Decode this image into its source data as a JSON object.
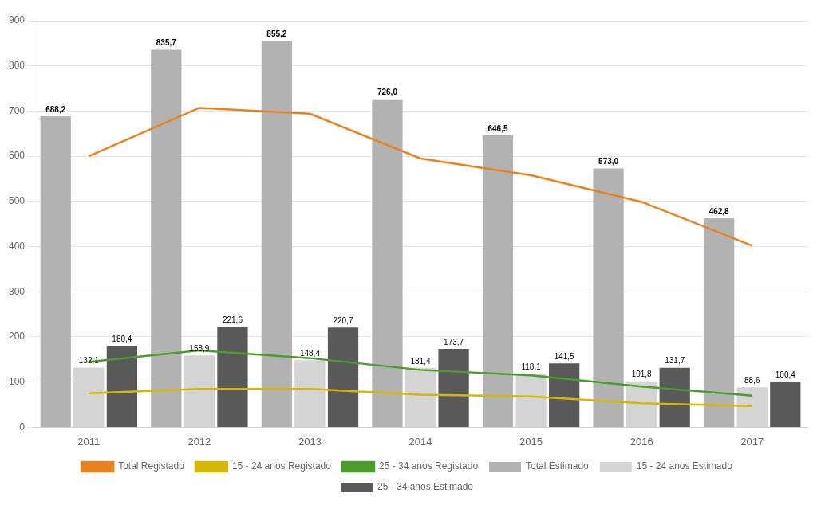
{
  "chart_data": {
    "type": "bar",
    "categories": [
      "2011",
      "2012",
      "2013",
      "2014",
      "2015",
      "2016",
      "2017"
    ],
    "series": [
      {
        "name": "Total Estimado",
        "type": "bar",
        "color": "#b2b2b2",
        "values": [
          688.2,
          835.7,
          855.2,
          726.0,
          646.5,
          573.0,
          462.8
        ],
        "value_labels": [
          "688,2",
          "835,7",
          "855,2",
          "726,0",
          "646,5",
          "573,0",
          "462,8"
        ]
      },
      {
        "name": "15 - 24 anos Estimado",
        "type": "bar",
        "color": "#d4d4d4",
        "values": [
          132.1,
          158.9,
          148.4,
          131.4,
          118.1,
          101.8,
          88.6
        ],
        "value_labels": [
          "132,1",
          "158,9",
          "148,4",
          "131,4",
          "118,1",
          "101,8",
          "88,6"
        ]
      },
      {
        "name": "25 - 34 anos Estimado",
        "type": "bar",
        "color": "#595959",
        "values": [
          180.4,
          221.6,
          220.7,
          173.7,
          141.5,
          131.7,
          100.4
        ],
        "value_labels": [
          "180,4",
          "221,6",
          "220,7",
          "173,7",
          "141,5",
          "131,7",
          "100,4"
        ]
      },
      {
        "name": "Total Registado",
        "type": "line",
        "color": "#e8821e",
        "marker": "none",
        "values": [
          600.0,
          707.0,
          694.0,
          595.0,
          558.0,
          499.0,
          402.0
        ]
      },
      {
        "name": "15 - 24 anos Registado",
        "type": "line",
        "color": "#d4b800",
        "marker": "none",
        "values": [
          75.0,
          85.0,
          85.0,
          72.0,
          68.0,
          53.0,
          47.0
        ]
      },
      {
        "name": "25 - 34 anos Registado",
        "type": "line",
        "color": "#4c9c2e",
        "marker": "none",
        "values": [
          145.0,
          170.0,
          153.0,
          127.0,
          115.0,
          90.0,
          70.0
        ]
      }
    ],
    "ylim": [
      0,
      900
    ],
    "yticks": [
      0,
      100,
      200,
      300,
      400,
      500,
      600,
      700,
      800,
      900
    ],
    "grid": true,
    "legend": "bottom",
    "data_labels": true
  }
}
